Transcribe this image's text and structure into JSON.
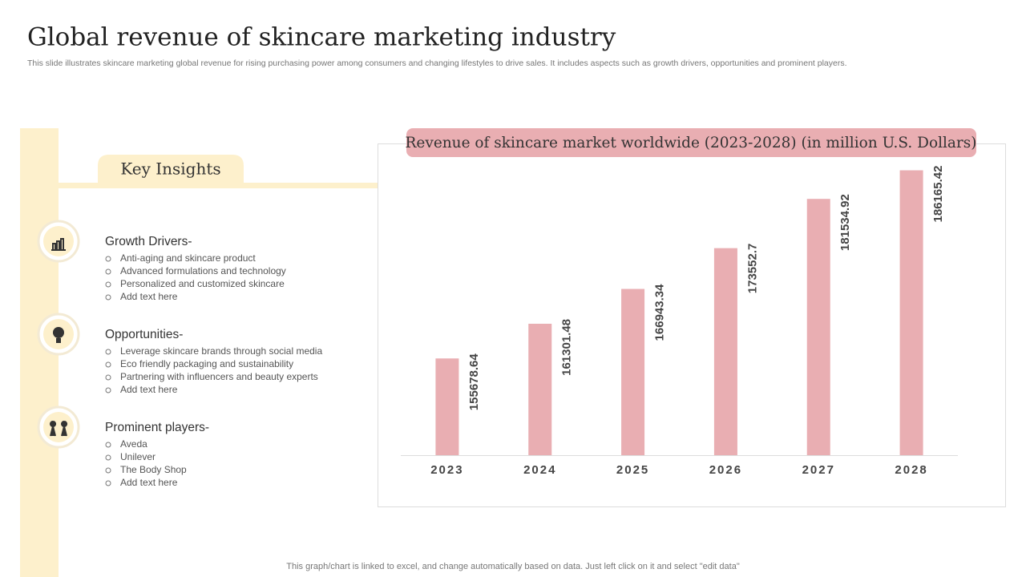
{
  "title": "Global revenue of skincare marketing industry",
  "subtitle": "This slide illustrates skincare marketing global revenue for rising purchasing power among consumers and changing lifestyles to drive sales. It includes aspects such as growth drivers, opportunities and prominent players.",
  "key_insights": "Key Insights",
  "sections": [
    {
      "heading": "Growth Drivers-",
      "items": [
        "Anti-aging and skincare product",
        "Advanced formulations and technology",
        "Personalized and customized skincare",
        "Add text here"
      ]
    },
    {
      "heading": "Opportunities-",
      "items": [
        "Leverage  skincare brands through social media",
        "Eco friendly packaging and sustainability",
        "Partnering with influencers and beauty experts",
        "Add text here"
      ]
    },
    {
      "heading": "Prominent players-",
      "items": [
        "Aveda",
        "Unilever",
        "The Body Shop",
        "Add text here"
      ]
    }
  ],
  "chart_data": {
    "type": "bar",
    "title": "Revenue of skincare market worldwide (2023-2028) (in million U.S. Dollars)",
    "categories": [
      "2023",
      "2024",
      "2025",
      "2026",
      "2027",
      "2028"
    ],
    "values": [
      155678.64,
      161301.48,
      166943.34,
      173552.7,
      181534.92,
      186165.42
    ],
    "color": "#e9aeb2",
    "ylim": [
      140000,
      190000
    ]
  },
  "footnote": "This graph/chart is linked to excel,  and change automatically based on data. Just left click on it and select \"edit data\""
}
